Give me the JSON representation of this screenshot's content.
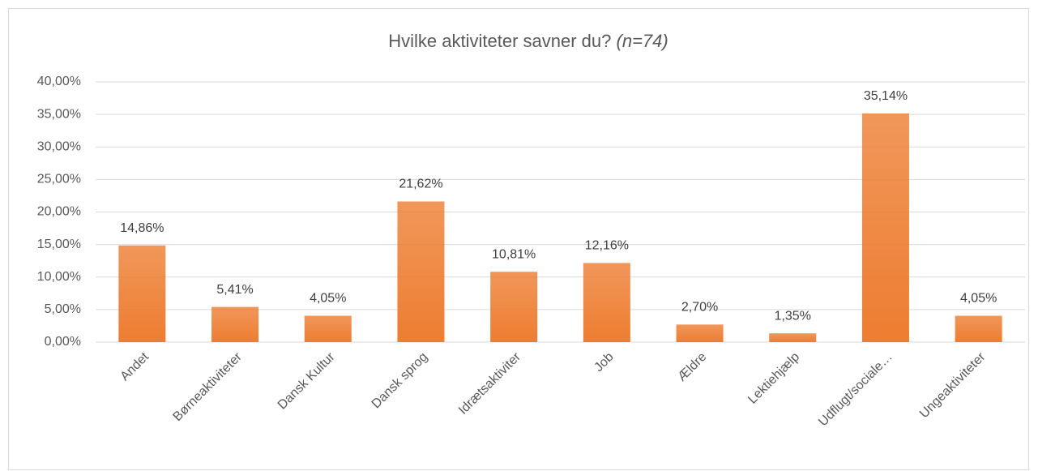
{
  "chart_data": {
    "type": "bar",
    "title": "Hvilke aktiviteter savner du?",
    "subtitle": "(n=74)",
    "categories": [
      "Andet",
      "Børneaktiviteter",
      "Dansk Kultur",
      "Dansk sprog",
      "Idrætsaktiviter",
      "Job",
      "Ældre",
      "Lektiehjælp",
      "Udflugt/sociale…",
      "Ungeaktiviteter"
    ],
    "values": [
      14.86,
      5.41,
      4.05,
      21.62,
      10.81,
      12.16,
      2.7,
      1.35,
      35.14,
      4.05
    ],
    "value_labels": [
      "14,86%",
      "5,41%",
      "4,05%",
      "21,62%",
      "10,81%",
      "12,16%",
      "2,70%",
      "1,35%",
      "35,14%",
      "4,05%"
    ],
    "color": "#ed7d31",
    "ylim": [
      0,
      40
    ],
    "yticks": [
      {
        "value": 0,
        "label": "0,00%"
      },
      {
        "value": 5,
        "label": "5,00%"
      },
      {
        "value": 10,
        "label": "10,00%"
      },
      {
        "value": 15,
        "label": "15,00%"
      },
      {
        "value": 20,
        "label": "20,00%"
      },
      {
        "value": 25,
        "label": "25,00%"
      },
      {
        "value": 30,
        "label": "30,00%"
      },
      {
        "value": 35,
        "label": "35,00%"
      },
      {
        "value": 40,
        "label": "40,00%"
      }
    ],
    "grid": true
  }
}
